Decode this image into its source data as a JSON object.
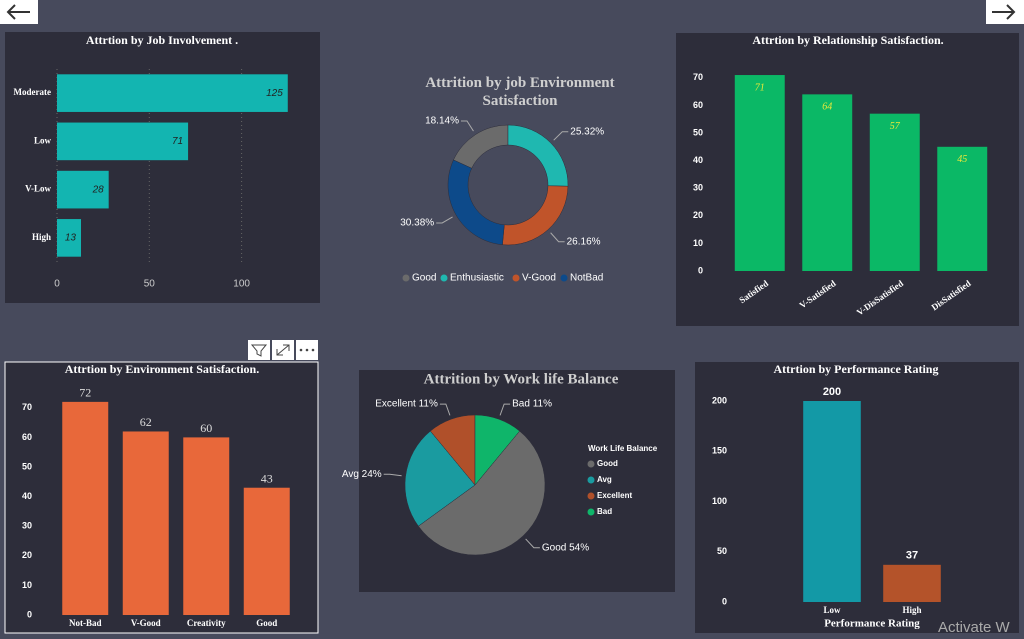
{
  "chart_data": [
    {
      "type": "hbar",
      "title": "Attrtion by Job Involvement .",
      "categories": [
        "Moderate",
        "Low",
        "V-Low",
        "High"
      ],
      "values": [
        125,
        71,
        28,
        13
      ],
      "color": "#13b5b1",
      "xlim": [
        0,
        130
      ],
      "xticks": [
        0,
        50,
        100
      ],
      "grid": true
    },
    {
      "type": "donut",
      "title": "Attrition by job Environment Satisfaction",
      "categories": [
        "Good",
        "Enthusiastic",
        "V-Good",
        "NotBad"
      ],
      "values": [
        18.14,
        25.32,
        26.16,
        30.38
      ],
      "value_labels": [
        "18.14%",
        "25.32%",
        "26.16%",
        "30.38%"
      ],
      "colors": [
        "#6b6b6b",
        "#1fb8b0",
        "#c0542a",
        "#0d4a8a"
      ],
      "legend": "bottom"
    },
    {
      "type": "bar",
      "title": "Attrtion by Relationship Satisfaction.",
      "categories": [
        "Satisfied",
        "V-Satisfied",
        "V-DisSatisfied",
        "DisSatisfied"
      ],
      "values": [
        71,
        64,
        57,
        45
      ],
      "color": "#0bb866",
      "ylim": [
        0,
        75
      ],
      "yticks": [
        0,
        10,
        20,
        30,
        40,
        50,
        60,
        70
      ]
    },
    {
      "type": "bar",
      "title": "Attrtion by Environment Satisfaction.",
      "categories": [
        "Not-Bad",
        "V-Good",
        "Creativity",
        "Good"
      ],
      "values": [
        72,
        62,
        60,
        43
      ],
      "color": "#e8683a",
      "ylim": [
        0,
        75
      ],
      "yticks": [
        0,
        10,
        20,
        30,
        40,
        50,
        60,
        70
      ]
    },
    {
      "type": "pie",
      "title": "Attrition by Work life Balance",
      "categories": [
        "Good",
        "Avg",
        "Excellent",
        "Bad"
      ],
      "values": [
        54,
        24,
        11,
        11
      ],
      "value_labels": [
        "Good 54%",
        "Avg 24%",
        "Excellent 11%",
        "Bad 11%"
      ],
      "colors": [
        "#6b6b6b",
        "#1a9ba0",
        "#b0502a",
        "#0fb56a"
      ],
      "legend_title": "Work Life Balance",
      "legend": "right"
    },
    {
      "type": "bar",
      "title": "Attrtion by Performance Rating",
      "categories": [
        "Low",
        "High"
      ],
      "values": [
        200,
        37
      ],
      "colors": [
        "#1399a6",
        "#b4532a"
      ],
      "ylim": [
        0,
        200
      ],
      "yticks": [
        0,
        50,
        100,
        150,
        200
      ],
      "x_label": "Performance Rating"
    }
  ],
  "watermark": "Activate W"
}
